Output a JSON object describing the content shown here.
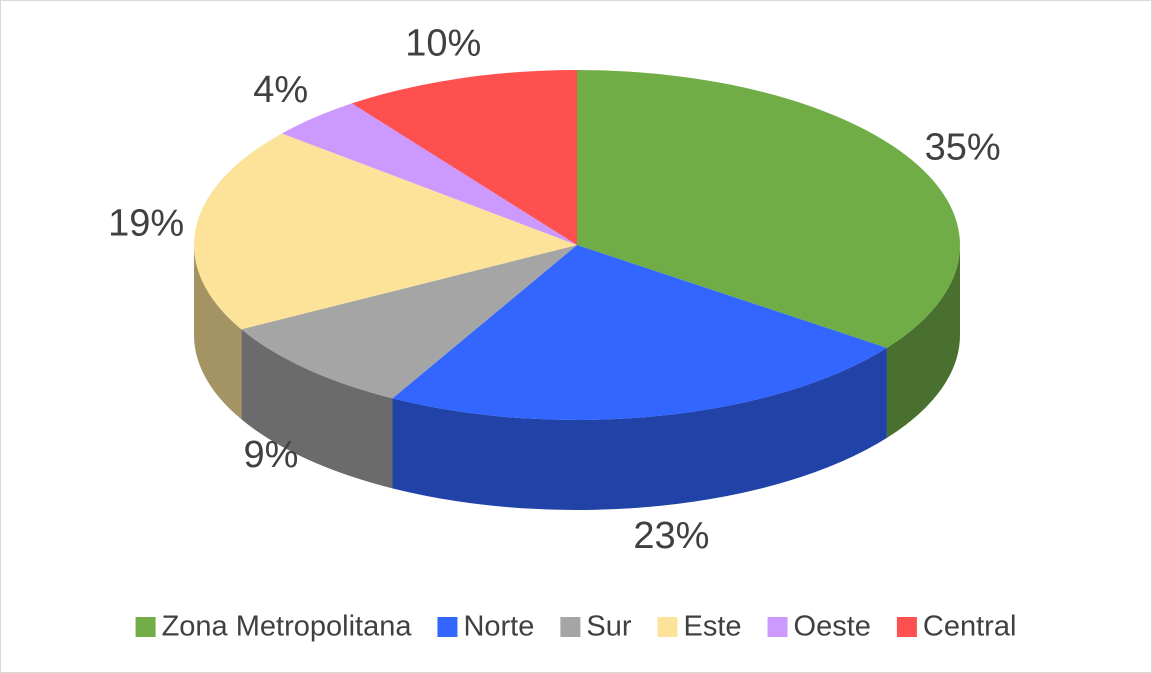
{
  "chart_data": {
    "type": "pie",
    "categories": [
      "Zona Metropolitana",
      "Norte",
      "Sur",
      "Este",
      "Oeste",
      "Central"
    ],
    "values": [
      35,
      23,
      9,
      19,
      4,
      10
    ],
    "value_labels": [
      "35%",
      "23%",
      "9%",
      "19%",
      "4%",
      "10%"
    ],
    "colors": [
      "#70ad47",
      "#3366ff",
      "#a5a5a5",
      "#fce399",
      "#cc99ff",
      "#ff5050"
    ],
    "legend": "bottom"
  }
}
